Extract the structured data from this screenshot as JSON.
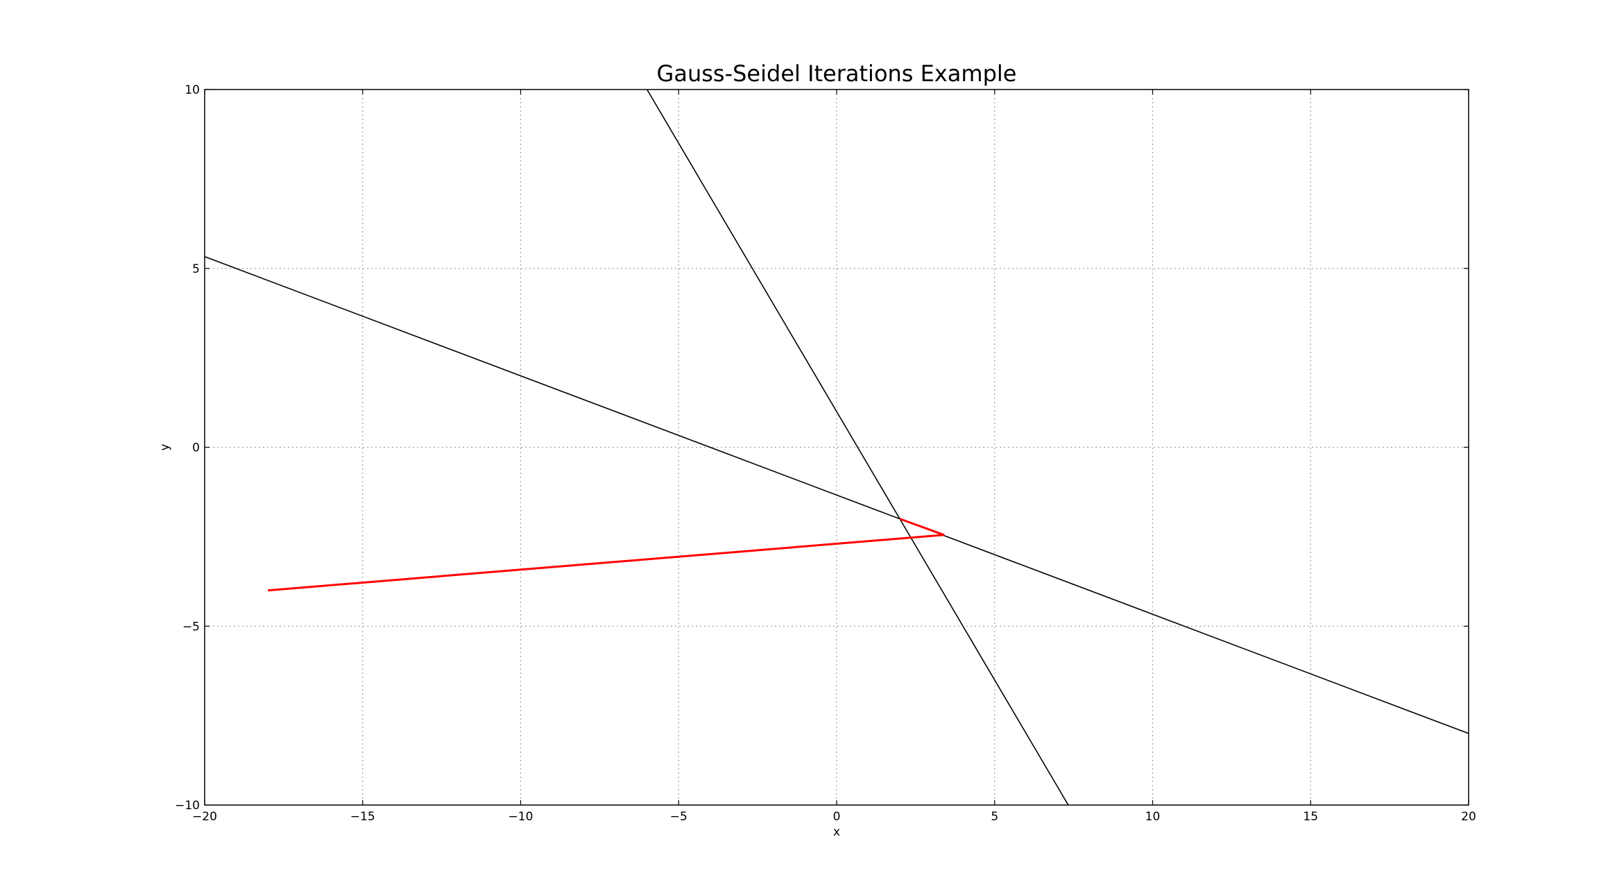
{
  "chart_data": {
    "type": "line",
    "title": "Gauss-Seidel Iterations Example",
    "xlabel": "x",
    "ylabel": "y",
    "xlim": [
      -20,
      20
    ],
    "ylim": [
      -10,
      10
    ],
    "xticks": [
      -20,
      -15,
      -10,
      -5,
      0,
      5,
      10,
      15,
      20
    ],
    "yticks": [
      -10,
      -5,
      0,
      5,
      10
    ],
    "xtick_labels": [
      "−20",
      "−15",
      "−10",
      "−5",
      "0",
      "5",
      "10",
      "15",
      "20"
    ],
    "ytick_labels": [
      "−10",
      "−5",
      "0",
      "5",
      "10"
    ],
    "grid": true,
    "grid_style": "dotted",
    "series": [
      {
        "color": "#000000",
        "x": [
          -20,
          20
        ],
        "y": [
          5.33,
          -8.0
        ]
      },
      {
        "color": "#000000",
        "x": [
          -6.0,
          7.33
        ],
        "y": [
          10.0,
          -10.0
        ]
      },
      {
        "color": "#ff0000",
        "x": [
          -18.0,
          3.4,
          2.0
        ],
        "y": [
          -4.0,
          -2.45,
          -2.0
        ]
      }
    ]
  }
}
